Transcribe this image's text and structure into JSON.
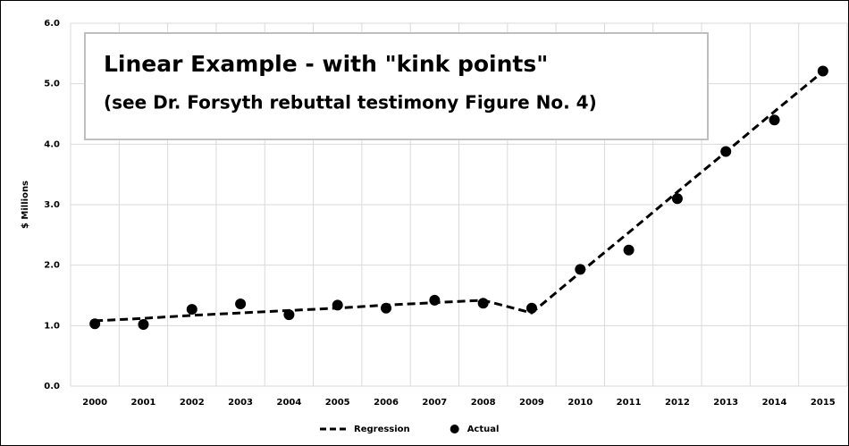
{
  "chart_data": {
    "type": "line",
    "title": "Linear Example - with \"kink points\"",
    "subtitle": "(see Dr. Forsyth rebuttal testimony Figure No. 4)",
    "y_label": "$ Millions",
    "categories": [
      "2000",
      "2001",
      "2002",
      "2003",
      "2004",
      "2005",
      "2006",
      "2007",
      "2008",
      "2009",
      "2010",
      "2011",
      "2012",
      "2013",
      "2014",
      "2015"
    ],
    "series": [
      {
        "name": "Regression",
        "color": "#000000",
        "style": "dashed",
        "values": [
          1.08,
          1.12,
          1.17,
          1.21,
          1.25,
          1.29,
          1.34,
          1.38,
          1.42,
          1.21,
          1.88,
          2.54,
          3.21,
          3.87,
          4.54,
          5.2
        ]
      },
      {
        "name": "Actual",
        "color": "#000000",
        "style": "markers",
        "values": [
          1.03,
          1.02,
          1.27,
          1.36,
          1.18,
          1.34,
          1.29,
          1.42,
          1.37,
          1.29,
          1.93,
          2.25,
          3.1,
          3.88,
          4.4,
          5.21
        ]
      }
    ],
    "ylim": [
      0,
      6
    ],
    "yticks": [
      {
        "value": 0,
        "label": "0.0"
      },
      {
        "value": 1,
        "label": "1.0"
      },
      {
        "value": 2,
        "label": "2.0"
      },
      {
        "value": 3,
        "label": "3.0"
      },
      {
        "value": 4,
        "label": "4.0"
      },
      {
        "value": 5,
        "label": "5.0"
      },
      {
        "value": 6,
        "label": "6.0"
      }
    ],
    "grid": true,
    "legend": "bottom"
  }
}
